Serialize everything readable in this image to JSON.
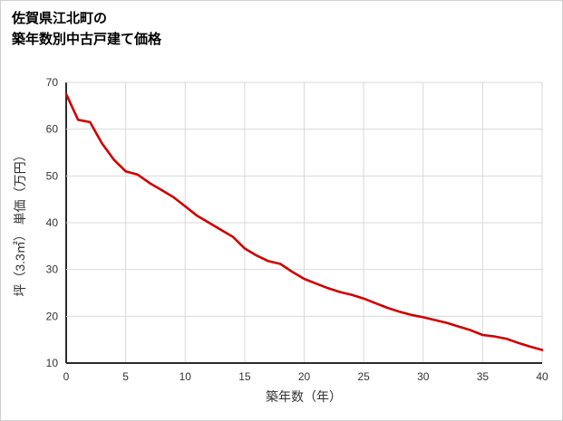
{
  "chart_data": {
    "type": "line",
    "title": "佐賀県江北町の\n築年数別中古戸建て価格",
    "xlabel": "築年数（年）",
    "ylabel": "坪（3.3㎡） 単価（万円）",
    "xlim": [
      0,
      40
    ],
    "ylim": [
      10,
      70
    ],
    "x_ticks": [
      0,
      5,
      10,
      15,
      20,
      25,
      30,
      35,
      40
    ],
    "y_ticks": [
      10,
      20,
      30,
      40,
      50,
      60,
      70
    ],
    "grid": true,
    "legend": "none",
    "series": [
      {
        "color": "#cc0000",
        "x": [
          0,
          1,
          2,
          3,
          4,
          5,
          6,
          7,
          8,
          9,
          10,
          11,
          12,
          13,
          14,
          15,
          16,
          17,
          18,
          19,
          20,
          21,
          22,
          23,
          24,
          25,
          26,
          27,
          28,
          29,
          30,
          31,
          32,
          33,
          34,
          35,
          36,
          37,
          38,
          39,
          40
        ],
        "values": [
          67.5,
          62,
          61.5,
          57,
          53.5,
          51,
          50.3,
          48.5,
          47,
          45.5,
          43.5,
          41.5,
          40,
          38.5,
          37,
          34.5,
          33,
          31.8,
          31.2,
          29.5,
          28,
          27,
          26,
          25.2,
          24.6,
          23.8,
          22.8,
          21.8,
          21,
          20.3,
          19.8,
          19.2,
          18.6,
          17.8,
          17,
          16,
          15.7,
          15.2,
          14.3,
          13.5,
          12.8
        ]
      }
    ]
  },
  "colors": {
    "line": "#cc0000",
    "axis": "#2b2b2b",
    "grid": "#d9d9d9",
    "text": "#333333",
    "border": "#cfcfcf"
  }
}
